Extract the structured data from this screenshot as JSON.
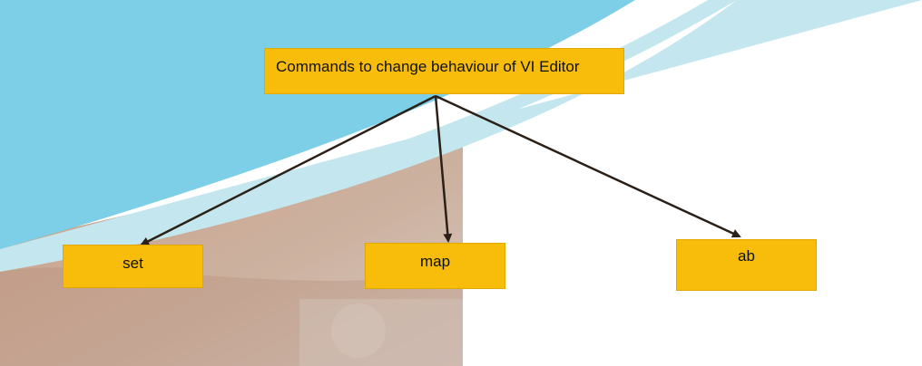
{
  "colors": {
    "node_fill": "#f8bd0a",
    "arrow": "#2a2018",
    "sky": "#7ccfe6",
    "band": "#c4e7ef",
    "photo": "#c9a48c"
  },
  "diagram": {
    "root": {
      "label": "Commands to change behaviour of VI Editor"
    },
    "children": [
      {
        "id": "set",
        "label": "set"
      },
      {
        "id": "map",
        "label": "map"
      },
      {
        "id": "ab",
        "label": "ab"
      }
    ]
  }
}
